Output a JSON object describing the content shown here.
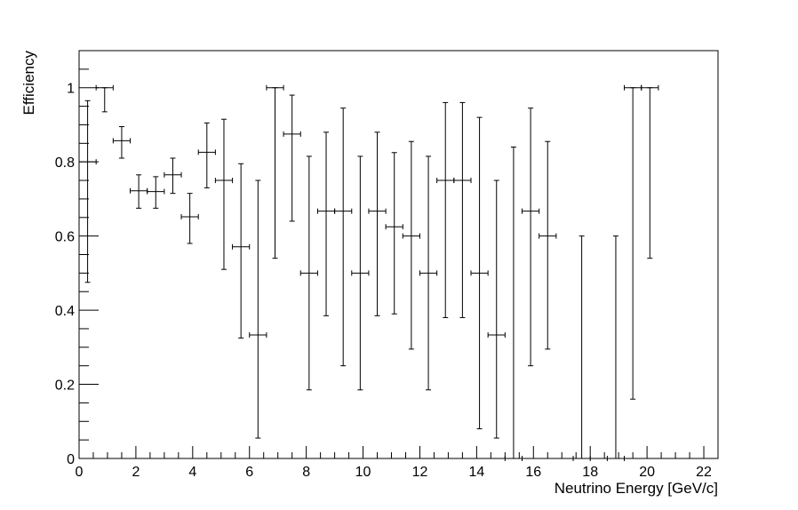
{
  "chart_data": {
    "type": "scatter",
    "title": "",
    "xlabel": "Neutrino Energy [GeV/c]",
    "ylabel": "Efficiency",
    "xlim": [
      0,
      22.5
    ],
    "ylim": [
      0,
      1.1
    ],
    "xticks": [
      0,
      2,
      4,
      6,
      8,
      10,
      12,
      14,
      16,
      18,
      20,
      22
    ],
    "yticks": [
      0,
      0.2,
      0.4,
      0.6,
      0.8,
      1.0
    ],
    "ytick_labels": [
      "0",
      "0.2",
      "0.4",
      "0.6",
      "0.8",
      "1"
    ],
    "grid": false,
    "bin_halfwidth": 0.3,
    "points": [
      {
        "x": 0.3,
        "y": 0.8,
        "ylo": 0.475,
        "yhi": 0.965
      },
      {
        "x": 0.9,
        "y": 1.0,
        "ylo": 0.935,
        "yhi": 1.0
      },
      {
        "x": 1.5,
        "y": 0.857,
        "ylo": 0.81,
        "yhi": 0.895
      },
      {
        "x": 2.1,
        "y": 0.722,
        "ylo": 0.675,
        "yhi": 0.765
      },
      {
        "x": 2.7,
        "y": 0.72,
        "ylo": 0.675,
        "yhi": 0.76
      },
      {
        "x": 3.3,
        "y": 0.765,
        "ylo": 0.715,
        "yhi": 0.81
      },
      {
        "x": 3.9,
        "y": 0.652,
        "ylo": 0.58,
        "yhi": 0.715
      },
      {
        "x": 4.5,
        "y": 0.826,
        "ylo": 0.73,
        "yhi": 0.905
      },
      {
        "x": 5.1,
        "y": 0.75,
        "ylo": 0.51,
        "yhi": 0.915
      },
      {
        "x": 5.7,
        "y": 0.571,
        "ylo": 0.325,
        "yhi": 0.795
      },
      {
        "x": 6.3,
        "y": 0.333,
        "ylo": 0.055,
        "yhi": 0.75
      },
      {
        "x": 6.9,
        "y": 1.0,
        "ylo": 0.54,
        "yhi": 1.0
      },
      {
        "x": 7.5,
        "y": 0.875,
        "ylo": 0.64,
        "yhi": 0.98
      },
      {
        "x": 8.1,
        "y": 0.5,
        "ylo": 0.185,
        "yhi": 0.815
      },
      {
        "x": 8.7,
        "y": 0.667,
        "ylo": 0.385,
        "yhi": 0.88
      },
      {
        "x": 9.3,
        "y": 0.667,
        "ylo": 0.25,
        "yhi": 0.945
      },
      {
        "x": 9.9,
        "y": 0.5,
        "ylo": 0.185,
        "yhi": 0.815
      },
      {
        "x": 10.5,
        "y": 0.667,
        "ylo": 0.385,
        "yhi": 0.88
      },
      {
        "x": 11.1,
        "y": 0.625,
        "ylo": 0.39,
        "yhi": 0.825
      },
      {
        "x": 11.7,
        "y": 0.6,
        "ylo": 0.295,
        "yhi": 0.855
      },
      {
        "x": 12.3,
        "y": 0.5,
        "ylo": 0.185,
        "yhi": 0.815
      },
      {
        "x": 12.9,
        "y": 0.75,
        "ylo": 0.38,
        "yhi": 0.96
      },
      {
        "x": 13.5,
        "y": 0.75,
        "ylo": 0.38,
        "yhi": 0.96
      },
      {
        "x": 14.1,
        "y": 0.5,
        "ylo": 0.08,
        "yhi": 0.92
      },
      {
        "x": 14.7,
        "y": 0.333,
        "ylo": 0.055,
        "yhi": 0.75
      },
      {
        "x": 15.3,
        "y": 0.0,
        "ylo": 0.0,
        "yhi": 0.84
      },
      {
        "x": 15.9,
        "y": 0.667,
        "ylo": 0.25,
        "yhi": 0.945
      },
      {
        "x": 16.5,
        "y": 0.6,
        "ylo": 0.295,
        "yhi": 0.855
      },
      {
        "x": 17.7,
        "y": 0.0,
        "ylo": 0.0,
        "yhi": 0.6
      },
      {
        "x": 18.9,
        "y": 0.0,
        "ylo": 0.0,
        "yhi": 0.6
      },
      {
        "x": 19.5,
        "y": 1.0,
        "ylo": 0.16,
        "yhi": 1.0
      },
      {
        "x": 20.1,
        "y": 1.0,
        "ylo": 0.54,
        "yhi": 1.0
      }
    ]
  }
}
